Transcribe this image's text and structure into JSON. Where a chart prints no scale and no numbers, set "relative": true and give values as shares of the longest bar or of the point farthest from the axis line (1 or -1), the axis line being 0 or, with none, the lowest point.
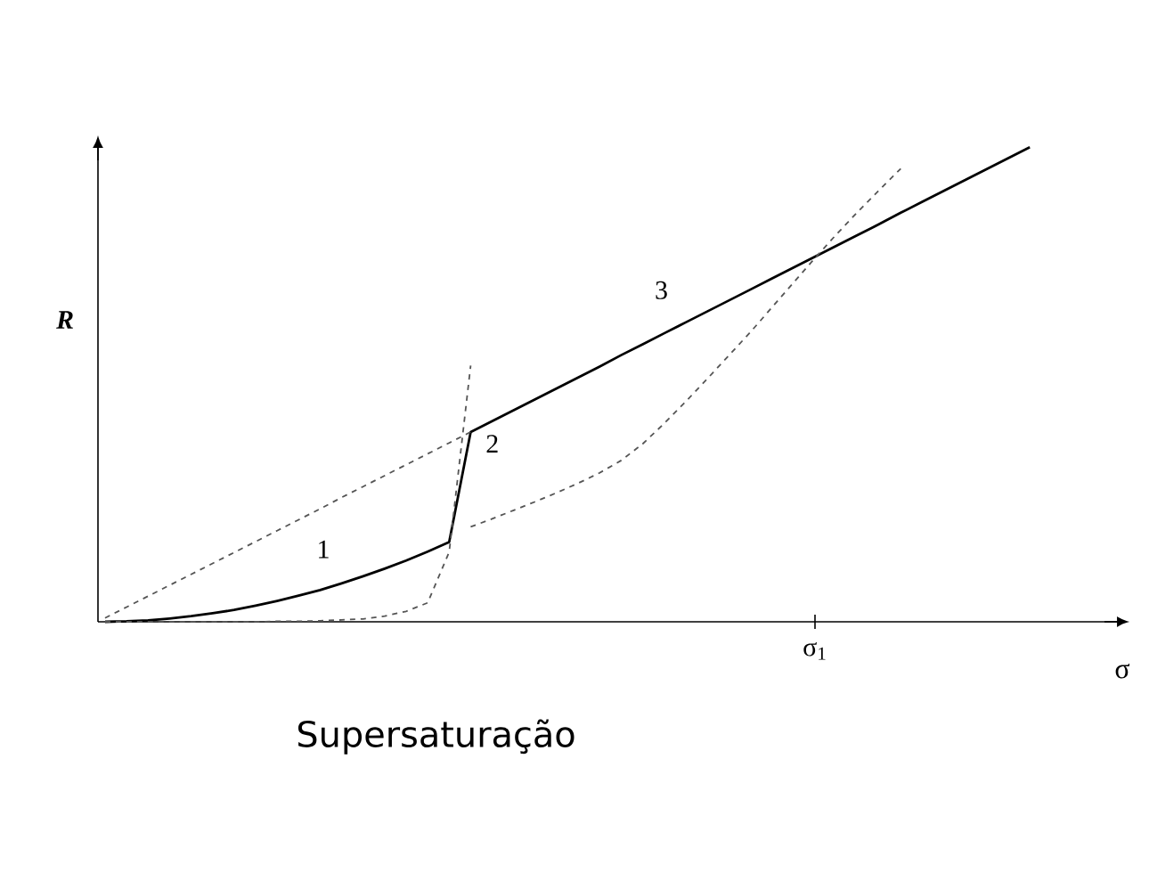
{
  "chart_data": {
    "type": "line",
    "relative": true,
    "xlabel": "σ",
    "ylabel": "R",
    "marker": "none",
    "categories": [
      null,
      null,
      null,
      null,
      null,
      null,
      null,
      null,
      null,
      null,
      null,
      null,
      null,
      null,
      null,
      null,
      null,
      null,
      null,
      null,
      null,
      null,
      null,
      null,
      null,
      null,
      null,
      null,
      null,
      null,
      null,
      null,
      null,
      null,
      null,
      null,
      null,
      null,
      null,
      null,
      null,
      null,
      null,
      null
    ],
    "series": [
      {
        "color": "#000000",
        "line_style": "solid",
        "values": [
          0.0,
          0.001,
          0.003,
          0.007,
          0.012,
          0.018,
          0.025,
          0.034,
          0.044,
          0.055,
          0.067,
          0.081,
          0.096,
          0.112,
          0.129,
          0.148,
          0.168,
          0.4,
          0.423,
          0.446,
          0.469,
          0.492,
          0.515,
          0.538,
          0.562,
          0.585,
          0.608,
          0.631,
          0.654,
          0.677,
          0.7,
          0.723,
          0.746,
          0.769,
          0.792,
          0.815,
          0.838,
          0.862,
          0.885,
          0.908,
          0.931,
          0.954,
          0.977,
          1.0
        ]
      },
      {
        "color": "#555555",
        "line_style": "dashed",
        "values": [
          0.008,
          0.031,
          0.054,
          0.077,
          0.1,
          0.123,
          0.146,
          0.169,
          0.192,
          0.215,
          0.238,
          0.262,
          0.285,
          0.308,
          0.331,
          0.354,
          0.377,
          0.4,
          null,
          null,
          null,
          null,
          null,
          null,
          null,
          null,
          null,
          null,
          null,
          null,
          null,
          null,
          null,
          null,
          null,
          null,
          null,
          null,
          null,
          null,
          null,
          null,
          null,
          null
        ]
      },
      {
        "color": "#555555",
        "line_style": "dashed",
        "values": [
          0,
          0,
          0,
          0,
          0,
          0,
          0,
          0,
          0.001,
          0.001,
          0.002,
          0.004,
          0.006,
          0.012,
          0.022,
          0.04,
          0.147,
          0.54,
          null,
          null,
          null,
          null,
          null,
          null,
          null,
          null,
          null,
          null,
          null,
          null,
          null,
          null,
          null,
          null,
          null,
          null,
          null,
          null,
          null,
          null,
          null,
          null,
          null,
          null
        ]
      },
      {
        "color": "#555555",
        "line_style": "dashed",
        "values": [
          null,
          null,
          null,
          null,
          null,
          null,
          null,
          null,
          null,
          null,
          null,
          null,
          null,
          null,
          null,
          null,
          null,
          0.2,
          0.217,
          0.235,
          0.253,
          0.272,
          0.292,
          0.314,
          0.34,
          0.375,
          0.418,
          0.464,
          0.512,
          0.561,
          0.61,
          0.662,
          0.714,
          0.766,
          0.816,
          0.864,
          0.91,
          0.955,
          null,
          null,
          null,
          null,
          null,
          null
        ]
      }
    ],
    "annotations": [
      "1",
      "2",
      "3",
      "σ$_{1}$",
      "Supersaturação"
    ]
  }
}
